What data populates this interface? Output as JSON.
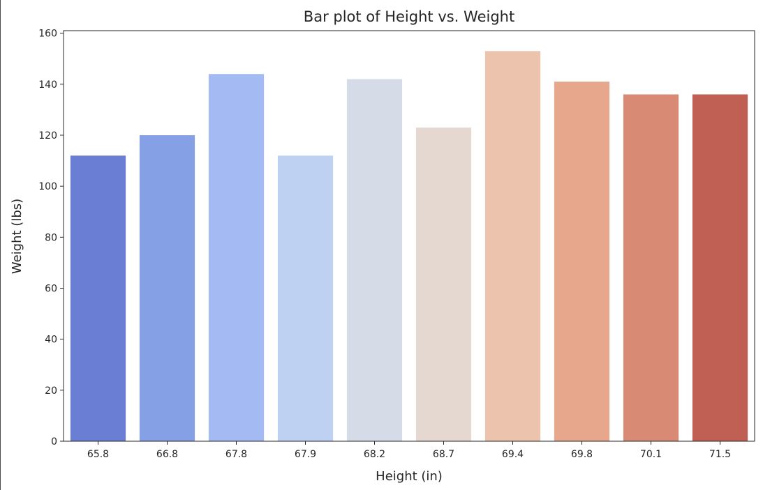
{
  "chart_data": {
    "type": "bar",
    "title": "Bar plot of Height vs. Weight",
    "xlabel": "Height (in)",
    "ylabel": "Weight (lbs)",
    "categories": [
      "65.8",
      "66.8",
      "67.8",
      "67.9",
      "68.2",
      "68.7",
      "69.4",
      "69.8",
      "70.1",
      "71.5"
    ],
    "values": [
      112,
      120,
      144,
      112,
      142,
      123,
      153,
      141,
      136,
      136
    ],
    "colors": [
      "#6a7fd3",
      "#85a0e4",
      "#a3bbf2",
      "#bfd1f3",
      "#d5dbe7",
      "#e4d8d1",
      "#ecc3ad",
      "#e6a78d",
      "#d88a74",
      "#c05f53"
    ],
    "ylim": [
      0,
      161
    ],
    "yticks": [
      0,
      20,
      40,
      60,
      80,
      100,
      120,
      140,
      160
    ],
    "grid": false,
    "legend": "none",
    "palette": "coolwarm"
  }
}
